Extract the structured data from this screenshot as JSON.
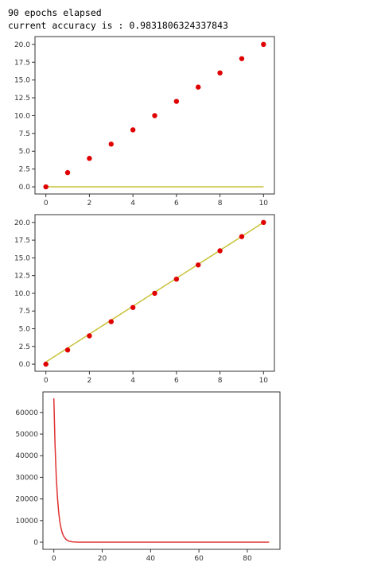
{
  "output": {
    "line1": "90 epochs elapsed",
    "line2": "current accuracy is : 0.9831806324337843"
  },
  "chart_data": [
    {
      "type": "scatter",
      "title": "",
      "xlabel": "",
      "ylabel": "",
      "xlim": [
        -0.5,
        10.5
      ],
      "ylim": [
        -1,
        21.1
      ],
      "xticks": [
        "0",
        "2",
        "4",
        "6",
        "8",
        "10"
      ],
      "yticks": [
        "0.0",
        "2.5",
        "5.0",
        "7.5",
        "10.0",
        "12.5",
        "15.0",
        "17.5",
        "20.0"
      ],
      "series": [
        {
          "kind": "scatter",
          "color": "#e00000",
          "x": [
            0,
            1,
            2,
            3,
            4,
            5,
            6,
            7,
            8,
            9,
            10
          ],
          "y": [
            0,
            2,
            4,
            6,
            8,
            10,
            12,
            14,
            16,
            18,
            20
          ]
        },
        {
          "kind": "line",
          "color": "#c9c23a",
          "x": [
            0,
            10
          ],
          "y": [
            0,
            0
          ]
        }
      ]
    },
    {
      "type": "scatter",
      "title": "",
      "xlabel": "",
      "ylabel": "",
      "xlim": [
        -0.5,
        10.5
      ],
      "ylim": [
        -1,
        21.1
      ],
      "xticks": [
        "0",
        "2",
        "4",
        "6",
        "8",
        "10"
      ],
      "yticks": [
        "0.0",
        "2.5",
        "5.0",
        "7.5",
        "10.0",
        "12.5",
        "15.0",
        "17.5",
        "20.0"
      ],
      "series": [
        {
          "kind": "scatter",
          "color": "#e00000",
          "x": [
            0,
            1,
            2,
            3,
            4,
            5,
            6,
            7,
            8,
            9,
            10
          ],
          "y": [
            0,
            2,
            4,
            6,
            8,
            10,
            12,
            14,
            16,
            18,
            20
          ]
        },
        {
          "kind": "line",
          "color": "#c9c23a",
          "x": [
            0,
            10
          ],
          "y": [
            0.3,
            20
          ]
        }
      ]
    },
    {
      "type": "line",
      "title": "",
      "xlabel": "",
      "ylabel": "",
      "xlim": [
        -4.5,
        93.5
      ],
      "ylim": [
        -3300,
        69500
      ],
      "xticks": [
        "0",
        "20",
        "40",
        "60",
        "80"
      ],
      "yticks": [
        "0",
        "10000",
        "20000",
        "30000",
        "40000",
        "50000",
        "60000"
      ],
      "series": [
        {
          "kind": "line",
          "color": "#e03030",
          "x": [
            0,
            0.5,
            1,
            1.5,
            2,
            2.5,
            3,
            3.5,
            4,
            5,
            6,
            7,
            8,
            10,
            15,
            20,
            30,
            50,
            70,
            89
          ],
          "y": [
            66500,
            45000,
            30400,
            20600,
            13900,
            9400,
            6350,
            4300,
            2900,
            1330,
            610,
            280,
            130,
            30,
            5,
            0,
            0,
            0,
            0,
            0
          ]
        }
      ]
    }
  ]
}
